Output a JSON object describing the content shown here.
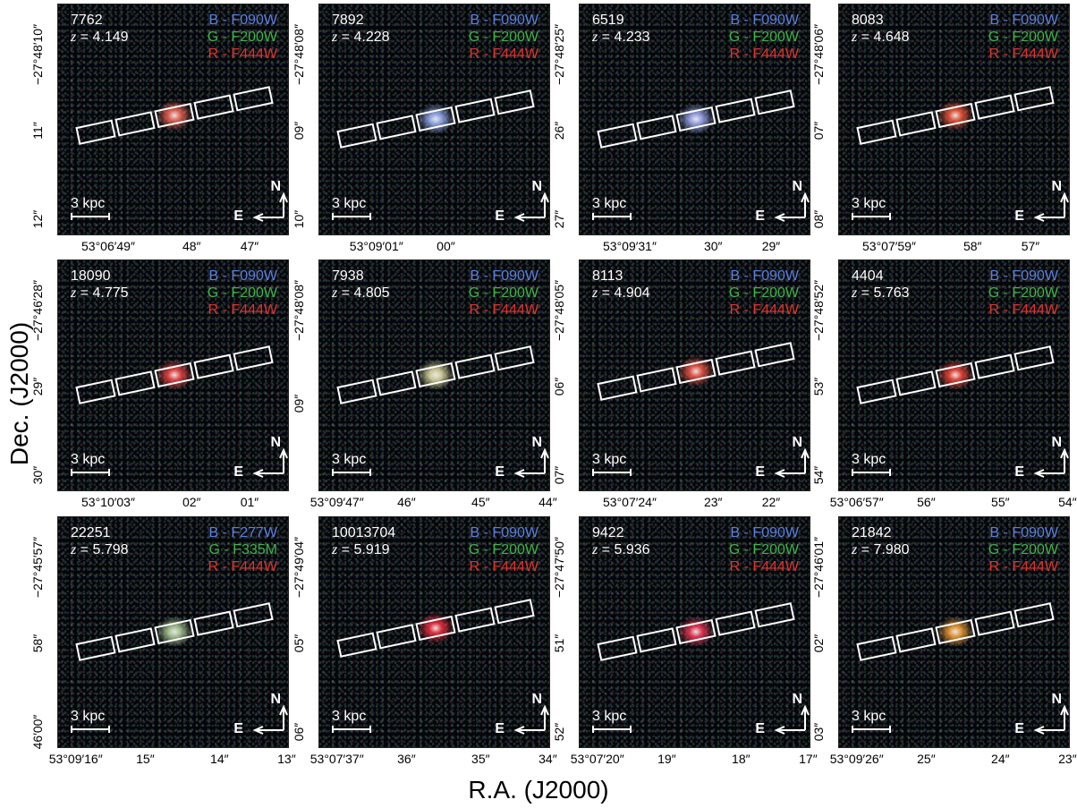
{
  "axes": {
    "xlabel": "R.A. (J2000)",
    "ylabel": "Dec. (J2000)"
  },
  "common": {
    "scale": "3 kpc",
    "north": "N",
    "east": "E"
  },
  "panels": [
    {
      "id": "7762",
      "z": "4.149",
      "bands": [
        "B - F090W",
        "G - F200W",
        "R - F444W"
      ],
      "y": [
        "−27°48′10″",
        "11″",
        "12″"
      ],
      "x": [
        "53°06′49″",
        "48″",
        "47″"
      ]
    },
    {
      "id": "7892",
      "z": "4.228",
      "bands": [
        "B - F090W",
        "G - F200W",
        "R - F444W"
      ],
      "y": [
        "−27°48′08″",
        "09″",
        "10″"
      ],
      "x": [
        "53°09′01″",
        "00″"
      ]
    },
    {
      "id": "6519",
      "z": "4.233",
      "bands": [
        "B - F090W",
        "G - F200W",
        "R - F444W"
      ],
      "y": [
        "−27°48′25″",
        "26″",
        "27″"
      ],
      "x": [
        "53°09′31″",
        "30″",
        "29″"
      ]
    },
    {
      "id": "8083",
      "z": "4.648",
      "bands": [
        "B - F090W",
        "G - F200W",
        "R - F444W"
      ],
      "y": [
        "−27°48′06″",
        "07″",
        "08″"
      ],
      "x": [
        "53°07′59″",
        "58″",
        "57″"
      ]
    },
    {
      "id": "18090",
      "z": "4.775",
      "bands": [
        "B - F090W",
        "G - F200W",
        "R - F444W"
      ],
      "y": [
        "−27°46′28″",
        "29″",
        "30″"
      ],
      "x": [
        "53°10′03″",
        "02″",
        "01″"
      ]
    },
    {
      "id": "7938",
      "z": "4.805",
      "bands": [
        "B - F090W",
        "G - F200W",
        "R - F444W"
      ],
      "y": [
        "−27°48′08″",
        "09″"
      ],
      "x": [
        "53°09′47″",
        "46″",
        "45″",
        "44″"
      ]
    },
    {
      "id": "8113",
      "z": "4.904",
      "bands": [
        "B - F090W",
        "G - F200W",
        "R - F444W"
      ],
      "y": [
        "−27°48′05″",
        "06″",
        "07″"
      ],
      "x": [
        "53°07′24″",
        "23″",
        "22″"
      ]
    },
    {
      "id": "4404",
      "z": "5.763",
      "bands": [
        "B - F090W",
        "G - F200W",
        "R - F444W"
      ],
      "y": [
        "−27°48′52″",
        "53″",
        "54″"
      ],
      "x": [
        "53°06′57″",
        "56″",
        "55″",
        "54″"
      ]
    },
    {
      "id": "22251",
      "z": "5.798",
      "bands": [
        "B - F277W",
        "G - F335M",
        "R - F444W"
      ],
      "y": [
        "−27°45′57″",
        "58″",
        "46′00″"
      ],
      "x": [
        "53°09′16″",
        "15″",
        "14″",
        "13″"
      ]
    },
    {
      "id": "10013704",
      "z": "5.919",
      "bands": [
        "B - F090W",
        "G - F200W",
        "R - F444W"
      ],
      "y": [
        "−27°49′04″",
        "05″",
        "06″"
      ],
      "x": [
        "53°07′37″",
        "36″",
        "35″",
        "34″"
      ]
    },
    {
      "id": "9422",
      "z": "5.936",
      "bands": [
        "B - F090W",
        "G - F200W",
        "R - F444W"
      ],
      "y": [
        "−27°47′50″",
        "51″",
        "52″"
      ],
      "x": [
        "53°07′20″",
        "19″",
        "18″",
        "17″"
      ]
    },
    {
      "id": "21842",
      "z": "7.980",
      "bands": [
        "B - F090W",
        "G - F200W",
        "R - F444W"
      ],
      "y": [
        "−27°46′01″",
        "02″",
        "03″"
      ],
      "x": [
        "53°09′26″",
        "25″",
        "24″",
        "23″"
      ]
    }
  ]
}
